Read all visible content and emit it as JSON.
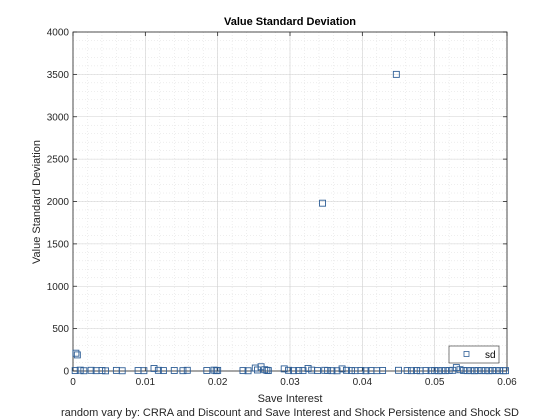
{
  "chart_data": {
    "type": "scatter",
    "title": "Value Standard Deviation",
    "xlabel": "Save Interest",
    "ylabel": "Value Standard Deviation",
    "caption": "random vary by: CRRA and Discount and Save Interest and Shock Persistence and Shock SD",
    "xlim": [
      0,
      0.06
    ],
    "ylim": [
      0,
      4000
    ],
    "xticks": [
      0,
      0.01,
      0.02,
      0.03,
      0.04,
      0.05,
      0.06
    ],
    "xtick_labels": [
      "0",
      "0.01",
      "0.02",
      "0.03",
      "0.04",
      "0.05",
      "0.06"
    ],
    "yticks": [
      0,
      500,
      1000,
      1500,
      2000,
      2500,
      3000,
      3500,
      4000
    ],
    "ytick_labels": [
      "0",
      "500",
      "1000",
      "1500",
      "2000",
      "2500",
      "3000",
      "3500",
      "4000"
    ],
    "grid": true,
    "minor_grid": true,
    "legend": {
      "position": "bottom-right",
      "entries": [
        "sd"
      ]
    },
    "marker": {
      "shape": "square",
      "color": "#2f5f97"
    },
    "series": [
      {
        "name": "sd",
        "points": [
          [
            0.0004,
            210
          ],
          [
            0.0006,
            190
          ],
          [
            0.0003,
            5
          ],
          [
            0.001,
            10
          ],
          [
            0.0015,
            3
          ],
          [
            0.0025,
            8
          ],
          [
            0.0032,
            4
          ],
          [
            0.004,
            6
          ],
          [
            0.0045,
            2
          ],
          [
            0.006,
            7
          ],
          [
            0.0068,
            3
          ],
          [
            0.009,
            5
          ],
          [
            0.0098,
            4
          ],
          [
            0.0112,
            30
          ],
          [
            0.0118,
            8
          ],
          [
            0.0125,
            5
          ],
          [
            0.014,
            6
          ],
          [
            0.0152,
            4
          ],
          [
            0.0158,
            8
          ],
          [
            0.0185,
            6
          ],
          [
            0.0195,
            10
          ],
          [
            0.0198,
            4
          ],
          [
            0.02,
            7
          ],
          [
            0.0235,
            5
          ],
          [
            0.0242,
            3
          ],
          [
            0.0252,
            35
          ],
          [
            0.0255,
            12
          ],
          [
            0.026,
            50
          ],
          [
            0.0265,
            15
          ],
          [
            0.0268,
            8
          ],
          [
            0.027,
            5
          ],
          [
            0.0292,
            25
          ],
          [
            0.0298,
            8
          ],
          [
            0.0305,
            4
          ],
          [
            0.0312,
            6
          ],
          [
            0.0318,
            5
          ],
          [
            0.0325,
            30
          ],
          [
            0.033,
            10
          ],
          [
            0.0338,
            5
          ],
          [
            0.0345,
            1980
          ],
          [
            0.0348,
            8
          ],
          [
            0.0352,
            6
          ],
          [
            0.0358,
            4
          ],
          [
            0.0365,
            3
          ],
          [
            0.0372,
            25
          ],
          [
            0.0378,
            8
          ],
          [
            0.0385,
            5
          ],
          [
            0.039,
            4
          ],
          [
            0.0398,
            6
          ],
          [
            0.0405,
            3
          ],
          [
            0.0412,
            5
          ],
          [
            0.042,
            4
          ],
          [
            0.0428,
            6
          ],
          [
            0.0447,
            3500
          ],
          [
            0.045,
            8
          ],
          [
            0.0462,
            5
          ],
          [
            0.0468,
            4
          ],
          [
            0.0475,
            6
          ],
          [
            0.048,
            3
          ],
          [
            0.0488,
            5
          ],
          [
            0.0495,
            4
          ],
          [
            0.05,
            6
          ],
          [
            0.0505,
            3
          ],
          [
            0.051,
            5
          ],
          [
            0.0515,
            4
          ],
          [
            0.052,
            6
          ],
          [
            0.0525,
            8
          ],
          [
            0.053,
            40
          ],
          [
            0.0535,
            15
          ],
          [
            0.054,
            6
          ],
          [
            0.0545,
            4
          ],
          [
            0.055,
            5
          ],
          [
            0.0555,
            3
          ],
          [
            0.056,
            6
          ],
          [
            0.0565,
            4
          ],
          [
            0.057,
            5
          ],
          [
            0.0575,
            3
          ],
          [
            0.058,
            6
          ],
          [
            0.0585,
            4
          ],
          [
            0.059,
            5
          ],
          [
            0.0595,
            3
          ],
          [
            0.0598,
            4
          ]
        ]
      }
    ]
  }
}
